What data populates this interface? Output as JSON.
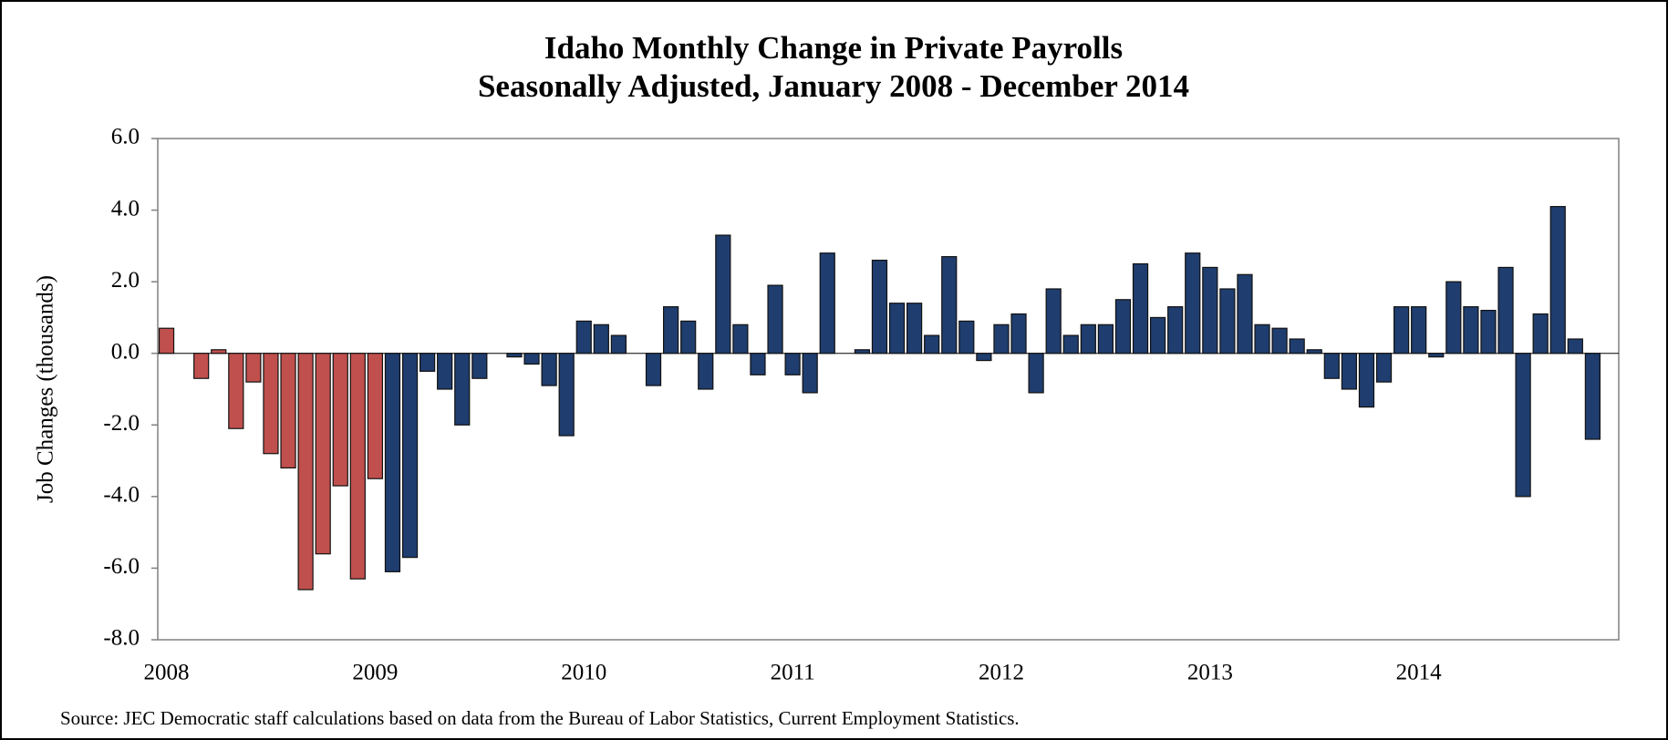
{
  "chart_data": {
    "type": "bar",
    "title": "Idaho Monthly Change in Private Payrolls",
    "subtitle": "Seasonally Adjusted, January 2008 - December 2014",
    "y_label": "Job Changes (thousands)",
    "source": "Source: JEC Democratic staff  calculations based on data from the Bureau of Labor Statistics, Current Employment Statistics.",
    "categories": [
      "2008",
      null,
      null,
      null,
      null,
      null,
      null,
      null,
      null,
      null,
      null,
      null,
      "2009",
      null,
      null,
      null,
      null,
      null,
      null,
      null,
      null,
      null,
      null,
      null,
      "2010",
      null,
      null,
      null,
      null,
      null,
      null,
      null,
      null,
      null,
      null,
      null,
      "2011",
      null,
      null,
      null,
      null,
      null,
      null,
      null,
      null,
      null,
      null,
      null,
      "2012",
      null,
      null,
      null,
      null,
      null,
      null,
      null,
      null,
      null,
      null,
      null,
      "2013",
      null,
      null,
      null,
      null,
      null,
      null,
      null,
      null,
      null,
      null,
      null,
      "2014",
      null,
      null,
      null,
      null,
      null,
      null,
      null,
      null,
      null,
      null
    ],
    "values": [
      0.7,
      0,
      -0.7,
      0.1,
      -2.1,
      -0.8,
      -2.8,
      -3.2,
      -6.6,
      -5.6,
      -3.7,
      -6.3,
      -3.5,
      -6.1,
      -5.7,
      -0.5,
      -1.0,
      -2.0,
      -0.7,
      0,
      -0.1,
      -0.3,
      -0.9,
      -2.3,
      0.9,
      0.8,
      0.5,
      0,
      -0.9,
      1.3,
      0.9,
      -1.0,
      3.3,
      0.8,
      -0.6,
      1.9,
      -0.6,
      -1.1,
      2.8,
      0,
      0.1,
      2.6,
      1.4,
      1.4,
      0.5,
      2.7,
      0.9,
      -0.2,
      0.8,
      1.1,
      -1.1,
      1.8,
      0.5,
      0.8,
      0.8,
      1.5,
      2.5,
      1.0,
      1.3,
      2.8,
      2.4,
      1.8,
      2.2,
      0.8,
      0.7,
      0.4,
      0.1,
      -0.7,
      -1.0,
      -1.5,
      -0.8,
      1.3,
      1.3,
      -0.1,
      2.0,
      1.3,
      1.2,
      2.4,
      -4.0,
      1.1,
      4.1,
      0.4,
      -2.4
    ],
    "colors": [
      "#c0504d",
      "#c0504d",
      "#c0504d",
      "#c0504d",
      "#c0504d",
      "#c0504d",
      "#c0504d",
      "#c0504d",
      "#c0504d",
      "#c0504d",
      "#c0504d",
      "#c0504d",
      "#c0504d",
      "#1f3d6e",
      "#1f3d6e",
      "#1f3d6e",
      "#1f3d6e",
      "#1f3d6e",
      "#1f3d6e",
      "#1f3d6e",
      "#1f3d6e",
      "#1f3d6e",
      "#1f3d6e",
      "#1f3d6e",
      "#1f3d6e",
      "#1f3d6e",
      "#1f3d6e",
      "#1f3d6e",
      "#1f3d6e",
      "#1f3d6e",
      "#1f3d6e",
      "#1f3d6e",
      "#1f3d6e",
      "#1f3d6e",
      "#1f3d6e",
      "#1f3d6e",
      "#1f3d6e",
      "#1f3d6e",
      "#1f3d6e",
      "#1f3d6e",
      "#1f3d6e",
      "#1f3d6e",
      "#1f3d6e",
      "#1f3d6e",
      "#1f3d6e",
      "#1f3d6e",
      "#1f3d6e",
      "#1f3d6e",
      "#1f3d6e",
      "#1f3d6e",
      "#1f3d6e",
      "#1f3d6e",
      "#1f3d6e",
      "#1f3d6e",
      "#1f3d6e",
      "#1f3d6e",
      "#1f3d6e",
      "#1f3d6e",
      "#1f3d6e",
      "#1f3d6e",
      "#1f3d6e",
      "#1f3d6e",
      "#1f3d6e",
      "#1f3d6e",
      "#1f3d6e",
      "#1f3d6e",
      "#1f3d6e",
      "#1f3d6e",
      "#1f3d6e",
      "#1f3d6e",
      "#1f3d6e",
      "#1f3d6e",
      "#1f3d6e",
      "#1f3d6e",
      "#1f3d6e",
      "#1f3d6e",
      "#1f3d6e",
      "#1f3d6e",
      "#1f3d6e",
      "#1f3d6e",
      "#1f3d6e",
      "#1f3d6e",
      "#1f3d6e"
    ],
    "ylim": [
      -8,
      6
    ],
    "yticks": [
      {
        "value": -8,
        "label": "-8.0"
      },
      {
        "value": -6,
        "label": "-6.0"
      },
      {
        "value": -4,
        "label": "-4.0"
      },
      {
        "value": -2,
        "label": "-2.0"
      },
      {
        "value": 0,
        "label": "0.0"
      },
      {
        "value": 2,
        "label": "2.0"
      },
      {
        "value": 4,
        "label": "4.0"
      },
      {
        "value": 6,
        "label": "6.0"
      }
    ],
    "grid": false
  }
}
